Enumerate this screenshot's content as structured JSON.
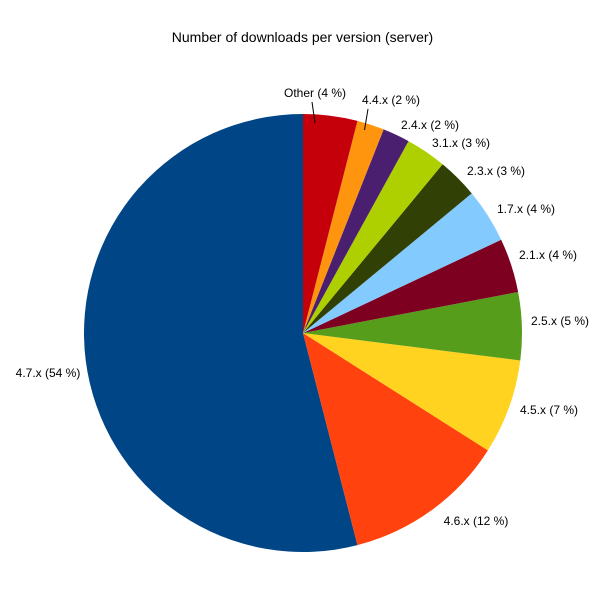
{
  "page": {
    "background_color": "#ffffff",
    "text_color": "#000000"
  },
  "chart_data": {
    "type": "pie",
    "title": "Number of downloads per version (server)",
    "unit": "%",
    "legend": "none",
    "grid": "off",
    "start_angle_deg": 90,
    "direction": "counterclockwise",
    "label_format": "name (value %)",
    "slices": [
      {
        "name": "4.7.x",
        "value": 54,
        "label": "4.7.x (54 %)",
        "color": "#004586"
      },
      {
        "name": "4.6.x",
        "value": 12,
        "label": "4.6.x (12 %)",
        "color": "#FF420E"
      },
      {
        "name": "4.5.x",
        "value": 7,
        "label": "4.5.x (7 %)",
        "color": "#FFD320"
      },
      {
        "name": "2.5.x",
        "value": 5,
        "label": "2.5.x (5 %)",
        "color": "#579D1C"
      },
      {
        "name": "2.1.x",
        "value": 4,
        "label": "2.1.x (4 %)",
        "color": "#7E0021"
      },
      {
        "name": "1.7.x",
        "value": 4,
        "label": "1.7.x (4 %)",
        "color": "#83CAFF"
      },
      {
        "name": "2.3.x",
        "value": 3,
        "label": "2.3.x (3 %)",
        "color": "#314004"
      },
      {
        "name": "3.1.x",
        "value": 3,
        "label": "3.1.x (3 %)",
        "color": "#AECF00"
      },
      {
        "name": "2.4.x",
        "value": 2,
        "label": "2.4.x (2 %)",
        "color": "#4B1F6F"
      },
      {
        "name": "4.4.x",
        "value": 2,
        "label": "4.4.x (2 %)",
        "color": "#FF950E"
      },
      {
        "name": "Other",
        "value": 4,
        "label": "Other (4 %)",
        "color": "#C5000B"
      }
    ]
  }
}
